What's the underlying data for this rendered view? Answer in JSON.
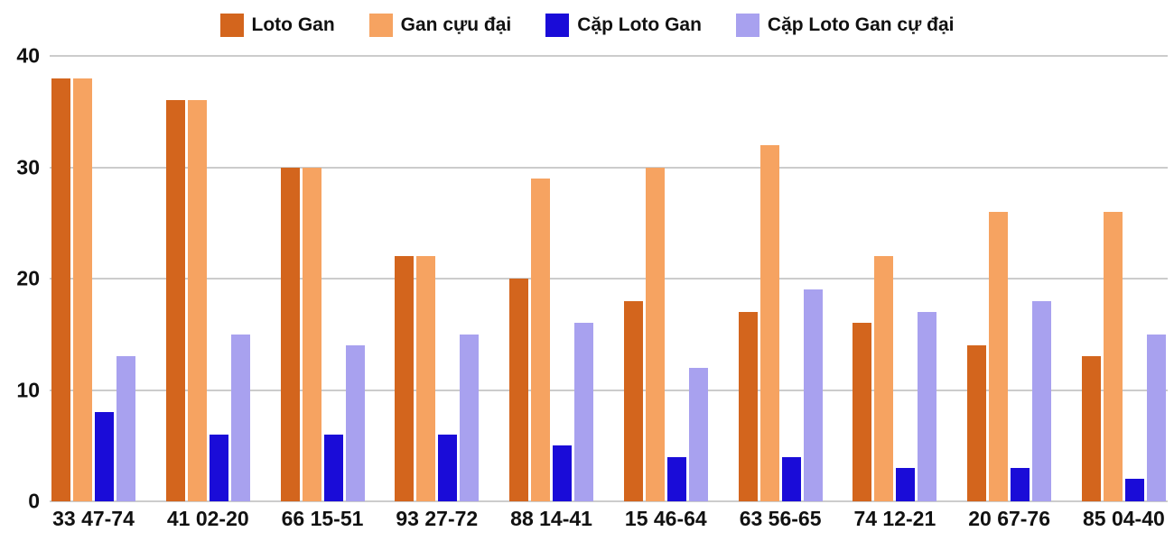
{
  "chart_data": {
    "type": "bar",
    "title": "",
    "xlabel": "",
    "ylabel": "",
    "ylim": [
      0,
      40
    ],
    "yticks": [
      0,
      10,
      20,
      30,
      40
    ],
    "grid": true,
    "legend_position": "top",
    "background": "#ffffff",
    "gridline_color": "#cccccc",
    "text_color": "#111111",
    "categories": [
      "33 47-74",
      "41 02-20",
      "66 15-51",
      "93 27-72",
      "88 14-41",
      "15 46-64",
      "63 56-65",
      "74 12-21",
      "20 67-76",
      "85 04-40"
    ],
    "series": [
      {
        "name": "Loto Gan",
        "color": "#d3651d",
        "values": [
          38,
          36,
          30,
          22,
          20,
          18,
          17,
          16,
          14,
          13
        ]
      },
      {
        "name": "Gan cựu đại",
        "color": "#f6a361",
        "values": [
          38,
          36,
          30,
          22,
          29,
          30,
          32,
          22,
          26,
          26
        ]
      },
      {
        "name": "Cặp Loto Gan",
        "color": "#1a0cd8",
        "values": [
          8,
          6,
          6,
          6,
          5,
          4,
          4,
          3,
          3,
          2
        ]
      },
      {
        "name": "Cặp Loto Gan cự đại",
        "color": "#a8a1ef",
        "values": [
          13,
          15,
          14,
          15,
          16,
          12,
          19,
          17,
          18,
          15
        ]
      }
    ]
  }
}
